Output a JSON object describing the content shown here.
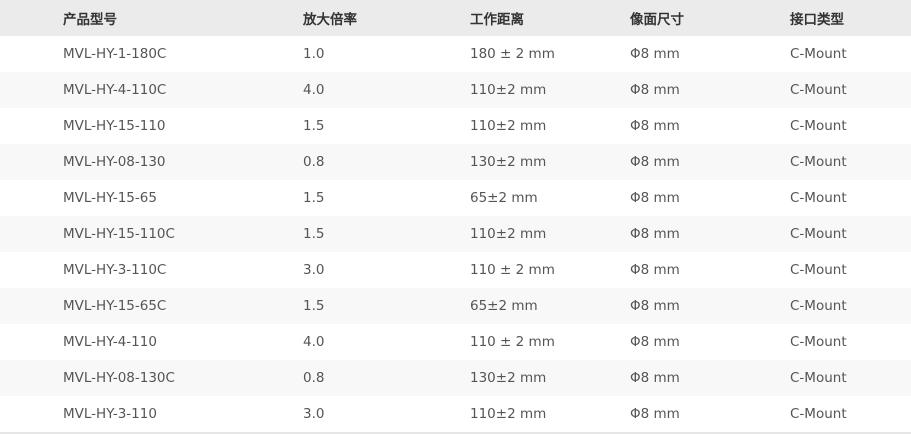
{
  "table": {
    "headers": [
      "产品型号",
      "放大倍率",
      "工作距离",
      "像面尺寸",
      "接口类型"
    ],
    "rows": [
      [
        "MVL-HY-1-180C",
        "1.0",
        "180 ± 2 mm",
        "Φ8 mm",
        "C-Mount"
      ],
      [
        "MVL-HY-4-110C",
        "4.0",
        "110±2 mm",
        "Φ8 mm",
        "C-Mount"
      ],
      [
        "MVL-HY-15-110",
        "1.5",
        "110±2 mm",
        "Φ8 mm",
        "C-Mount"
      ],
      [
        "MVL-HY-08-130",
        "0.8",
        "130±2 mm",
        "Φ8 mm",
        "C-Mount"
      ],
      [
        "MVL-HY-15-65",
        "1.5",
        "65±2 mm",
        "Φ8 mm",
        "C-Mount"
      ],
      [
        "MVL-HY-15-110C",
        "1.5",
        "110±2 mm",
        "Φ8 mm",
        "C-Mount"
      ],
      [
        "MVL-HY-3-110C",
        "3.0",
        "110 ± 2 mm",
        "Φ8 mm",
        "C-Mount"
      ],
      [
        "MVL-HY-15-65C",
        "1.5",
        "65±2 mm",
        "Φ8 mm",
        "C-Mount"
      ],
      [
        "MVL-HY-4-110",
        "4.0",
        "110 ± 2 mm",
        "Φ8 mm",
        "C-Mount"
      ],
      [
        "MVL-HY-08-130C",
        "0.8",
        "130±2 mm",
        "Φ8 mm",
        "C-Mount"
      ],
      [
        "MVL-HY-3-110",
        "3.0",
        "110±2 mm",
        "Φ8 mm",
        "C-Mount"
      ]
    ]
  },
  "colors": {
    "header_bg": "#ebebeb",
    "row_alt_bg": "#f8f8f8",
    "text": "#555555"
  }
}
